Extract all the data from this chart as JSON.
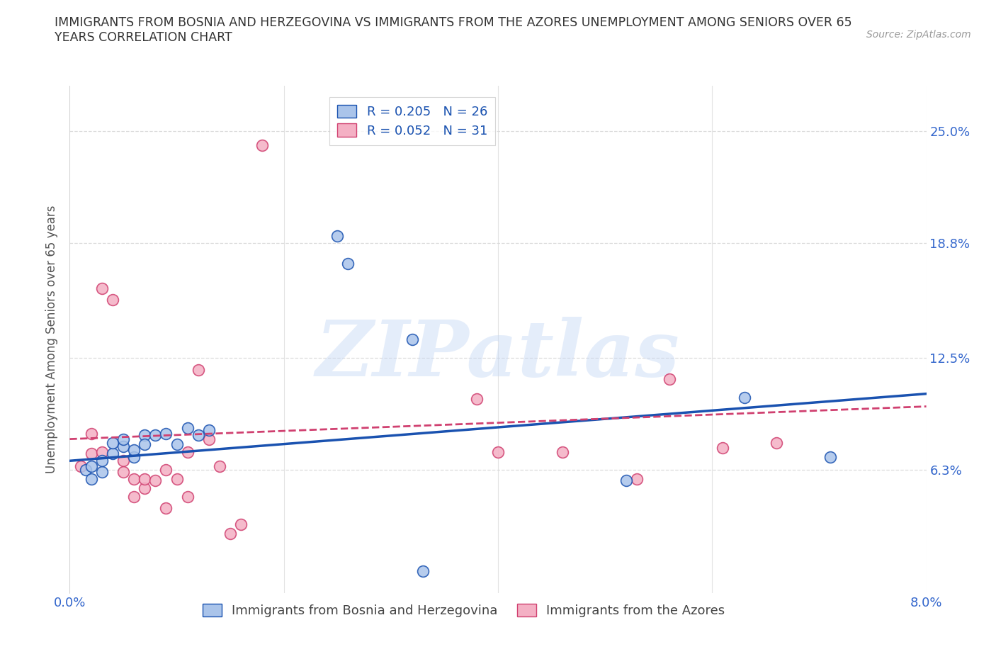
{
  "title": "IMMIGRANTS FROM BOSNIA AND HERZEGOVINA VS IMMIGRANTS FROM THE AZORES UNEMPLOYMENT AMONG SENIORS OVER 65\nYEARS CORRELATION CHART",
  "source": "Source: ZipAtlas.com",
  "ylabel": "Unemployment Among Seniors over 65 years",
  "ytick_labels": [
    "6.3%",
    "12.5%",
    "18.8%",
    "25.0%"
  ],
  "ytick_values": [
    0.063,
    0.125,
    0.188,
    0.25
  ],
  "xlim": [
    0.0,
    0.08
  ],
  "ylim": [
    -0.005,
    0.275
  ],
  "legend_r_blue": "R = 0.205",
  "legend_n_blue": "N = 26",
  "legend_r_pink": "R = 0.052",
  "legend_n_pink": "N = 31",
  "label_blue": "Immigrants from Bosnia and Herzegovina",
  "label_pink": "Immigrants from the Azores",
  "color_blue": "#aac4ea",
  "color_pink": "#f4b0c4",
  "line_blue": "#1a52b0",
  "line_pink": "#d04070",
  "blue_points_x": [
    0.0015,
    0.002,
    0.002,
    0.003,
    0.003,
    0.004,
    0.004,
    0.005,
    0.005,
    0.006,
    0.006,
    0.007,
    0.007,
    0.008,
    0.009,
    0.01,
    0.011,
    0.012,
    0.013,
    0.025,
    0.026,
    0.032,
    0.033,
    0.052,
    0.063,
    0.071
  ],
  "blue_points_y": [
    0.063,
    0.058,
    0.065,
    0.062,
    0.068,
    0.072,
    0.078,
    0.076,
    0.08,
    0.07,
    0.074,
    0.082,
    0.077,
    0.082,
    0.083,
    0.077,
    0.086,
    0.082,
    0.085,
    0.192,
    0.177,
    0.135,
    0.007,
    0.057,
    0.103,
    0.07
  ],
  "pink_points_x": [
    0.001,
    0.002,
    0.002,
    0.003,
    0.003,
    0.004,
    0.005,
    0.005,
    0.006,
    0.006,
    0.007,
    0.007,
    0.008,
    0.009,
    0.009,
    0.01,
    0.011,
    0.011,
    0.012,
    0.013,
    0.014,
    0.015,
    0.016,
    0.018,
    0.038,
    0.04,
    0.046,
    0.053,
    0.056,
    0.061,
    0.066
  ],
  "pink_points_y": [
    0.065,
    0.072,
    0.083,
    0.073,
    0.163,
    0.157,
    0.068,
    0.062,
    0.058,
    0.048,
    0.053,
    0.058,
    0.057,
    0.063,
    0.042,
    0.058,
    0.073,
    0.048,
    0.118,
    0.08,
    0.065,
    0.028,
    0.033,
    0.242,
    0.102,
    0.073,
    0.073,
    0.058,
    0.113,
    0.075,
    0.078
  ],
  "blue_trend_x": [
    0.0,
    0.08
  ],
  "blue_trend_y": [
    0.068,
    0.105
  ],
  "pink_trend_x": [
    0.0,
    0.08
  ],
  "pink_trend_y": [
    0.08,
    0.098
  ],
  "watermark": "ZIPatlas",
  "grid_color": "#d8d8d8",
  "background_color": "#ffffff",
  "title_color": "#333333",
  "tick_label_color": "#3366cc"
}
